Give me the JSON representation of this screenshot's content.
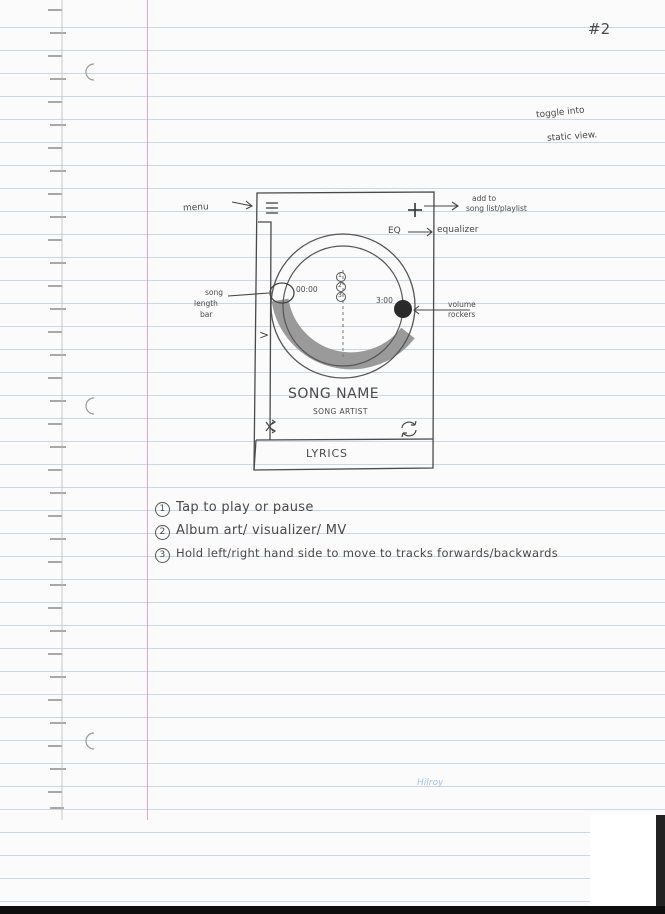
{
  "page_number": "#2",
  "top_note": [
    "toggle into",
    "static view."
  ],
  "annotations": {
    "menu": "menu",
    "add": [
      "add to",
      "song list/playlist"
    ],
    "eq_arrow": "equalizer",
    "song_length": [
      "song",
      "length",
      "bar"
    ],
    "volume": [
      "volume",
      "rockers"
    ]
  },
  "sketch": {
    "eq_label": "EQ",
    "time_elapsed": "00:00",
    "time_total": "3:00",
    "markers": [
      "1",
      "2",
      "3"
    ],
    "song_name": "SONG NAME",
    "song_artist": "SONG ARTIST",
    "lyrics": "LYRICS",
    "plus": "+",
    "chevron": ">"
  },
  "notes": [
    {
      "num": "1",
      "text": "Tap to play or pause"
    },
    {
      "num": "2",
      "text": "Album art/ visualizer/ MV"
    },
    {
      "num": "3",
      "text": "Hold left/right hand side  to move to tracks forwards/backwards"
    }
  ],
  "brand": "Hilroy"
}
